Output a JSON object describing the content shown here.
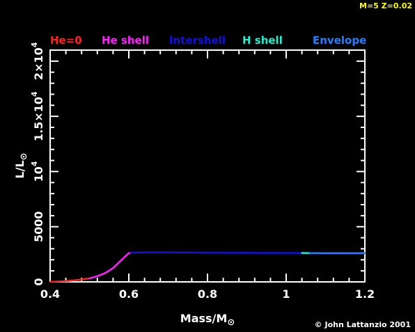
{
  "header": {
    "model_label": "M=5 Z=0.02"
  },
  "footer": {
    "credit": "© John Lattanzio 2001"
  },
  "chart_data": {
    "type": "line",
    "title": "",
    "xlabel_main": "Mass/M",
    "xlabel_sub": "⊙",
    "ylabel_main": "L/L",
    "ylabel_sub": "⊙",
    "xlim": [
      0.4,
      1.2
    ],
    "ylim": [
      0,
      21000
    ],
    "x_ticks": [
      {
        "value": 0.4,
        "label": "0.4"
      },
      {
        "value": 0.6,
        "label": "0.6"
      },
      {
        "value": 0.8,
        "label": "0.8"
      },
      {
        "value": 1.0,
        "label": "1"
      },
      {
        "value": 1.2,
        "label": "1.2"
      }
    ],
    "y_ticks": [
      {
        "value": 0,
        "label": "0",
        "exp": ""
      },
      {
        "value": 5000,
        "label": "5000",
        "exp": ""
      },
      {
        "value": 10000,
        "label": "10",
        "exp": "4"
      },
      {
        "value": 15000,
        "label": "1.5×10",
        "exp": "4"
      },
      {
        "value": 20000,
        "label": "2×10",
        "exp": "4"
      }
    ],
    "legend_position": "top",
    "grid": false,
    "series": [
      {
        "name": "He=0",
        "color": "#ff2020",
        "x": [
          0.4,
          0.42,
          0.44,
          0.46,
          0.48,
          0.5
        ],
        "y": [
          0,
          30,
          70,
          130,
          220,
          320
        ]
      },
      {
        "name": "He shell",
        "color": "#ff20ff",
        "x": [
          0.5,
          0.52,
          0.54,
          0.56,
          0.58,
          0.6,
          0.605
        ],
        "y": [
          320,
          520,
          800,
          1250,
          1950,
          2600,
          2650
        ]
      },
      {
        "name": "Intershell",
        "color": "#1010e0",
        "x": [
          0.605,
          0.65,
          0.7,
          0.8,
          0.9,
          1.0,
          1.04
        ],
        "y": [
          2650,
          2680,
          2680,
          2650,
          2630,
          2620,
          2620
        ]
      },
      {
        "name": "H shell",
        "color": "#20f0d0",
        "x": [
          1.04,
          1.06
        ],
        "y": [
          2620,
          2610
        ]
      },
      {
        "name": "Envelope",
        "color": "#2080ff",
        "x": [
          1.06,
          1.1,
          1.15,
          1.2
        ],
        "y": [
          2610,
          2600,
          2600,
          2600
        ]
      }
    ]
  }
}
